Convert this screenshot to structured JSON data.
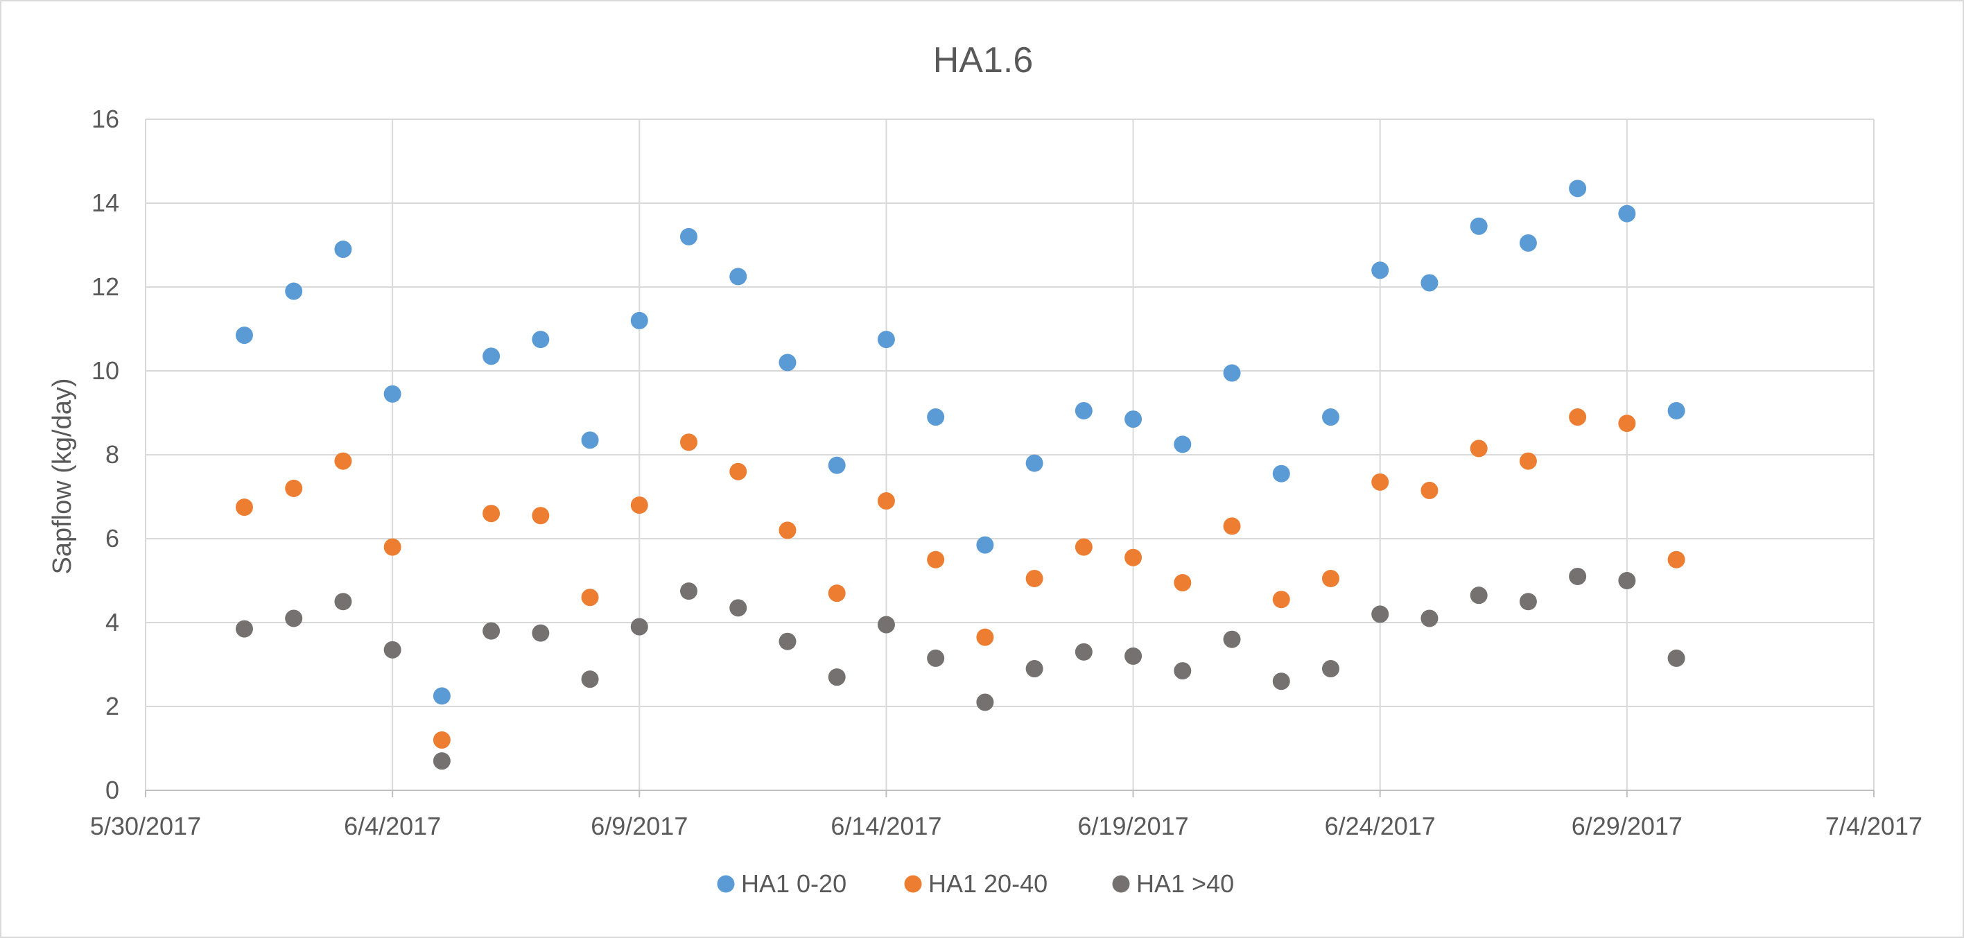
{
  "chart_data": {
    "type": "scatter",
    "title": "HA1.6",
    "xlabel": "",
    "ylabel": "Sapflow (kg/day)",
    "xlim": [
      "5/30/2017",
      "7/4/2017"
    ],
    "ylim": [
      0,
      16
    ],
    "x_ticks": [
      "5/30/2017",
      "6/4/2017",
      "6/9/2017",
      "6/14/2017",
      "6/19/2017",
      "6/24/2017",
      "6/29/2017",
      "7/4/2017"
    ],
    "y_ticks": [
      0,
      2,
      4,
      6,
      8,
      10,
      12,
      14,
      16
    ],
    "grid": true,
    "legend_position": "bottom",
    "x": [
      "6/1/2017",
      "6/2/2017",
      "6/3/2017",
      "6/4/2017",
      "6/5/2017",
      "6/6/2017",
      "6/7/2017",
      "6/8/2017",
      "6/9/2017",
      "6/10/2017",
      "6/11/2017",
      "6/12/2017",
      "6/13/2017",
      "6/14/2017",
      "6/15/2017",
      "6/16/2017",
      "6/17/2017",
      "6/18/2017",
      "6/19/2017",
      "6/20/2017",
      "6/21/2017",
      "6/22/2017",
      "6/23/2017",
      "6/24/2017",
      "6/25/2017",
      "6/26/2017",
      "6/27/2017",
      "6/28/2017",
      "6/29/2017",
      "6/30/2017"
    ],
    "series": [
      {
        "name": "HA1 0-20",
        "color": "#5b9bd5",
        "values": [
          10.85,
          11.9,
          12.9,
          9.45,
          2.25,
          10.35,
          10.75,
          8.35,
          11.2,
          13.2,
          12.25,
          10.2,
          7.75,
          10.75,
          8.9,
          5.85,
          7.8,
          9.05,
          8.85,
          8.25,
          9.95,
          7.55,
          8.9,
          12.4,
          12.1,
          13.45,
          13.05,
          14.35,
          13.75,
          9.05
        ]
      },
      {
        "name": "HA1 20-40",
        "color": "#ed7d31",
        "values": [
          6.75,
          7.2,
          7.85,
          5.8,
          1.2,
          6.6,
          6.55,
          4.6,
          6.8,
          8.3,
          7.6,
          6.2,
          4.7,
          6.9,
          5.5,
          3.65,
          5.05,
          5.8,
          5.55,
          4.95,
          6.3,
          4.55,
          5.05,
          7.35,
          7.15,
          8.15,
          7.85,
          8.9,
          8.75,
          5.5
        ]
      },
      {
        "name": "HA1 >40",
        "color": "#757171",
        "values": [
          3.85,
          4.1,
          4.5,
          3.35,
          0.7,
          3.8,
          3.75,
          2.65,
          3.9,
          4.75,
          4.35,
          3.55,
          2.7,
          3.95,
          3.15,
          2.1,
          2.9,
          3.3,
          3.2,
          2.85,
          3.6,
          2.6,
          2.9,
          4.2,
          4.1,
          4.65,
          4.5,
          5.1,
          5.0,
          3.15
        ]
      }
    ]
  }
}
